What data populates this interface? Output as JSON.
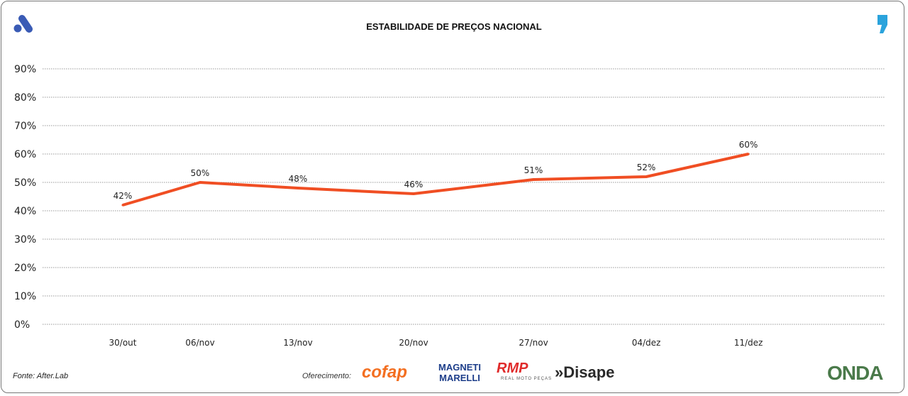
{
  "chart_data": {
    "type": "line",
    "title": "ESTABILIDADE DE PREÇOS NACIONAL",
    "categories": [
      "30/out",
      "06/nov",
      "13/nov",
      "20/nov",
      "27/nov",
      "04/dez",
      "11/dez"
    ],
    "series": [
      {
        "name": "Estabilidade de preços",
        "values": [
          42,
          50,
          48,
          46,
          51,
          52,
          60
        ],
        "labels": [
          "42%",
          "50%",
          "48%",
          "46%",
          "51%",
          "52%",
          "60%"
        ],
        "color": "#f04e23"
      }
    ],
    "yticks": [
      "0%",
      "10%",
      "20%",
      "30%",
      "40%",
      "50%",
      "60%",
      "70%",
      "80%",
      "90%"
    ],
    "ylim": [
      0,
      90
    ],
    "grid": true,
    "xlabel": "",
    "ylabel": ""
  },
  "footer": {
    "source": "Fonte: After.Lab",
    "sponsor_label": "Oferecimento:",
    "sponsors": [
      "cofap",
      "MAGNETI MARELLI",
      "RMP",
      "REAL MOTO PEÇAS",
      "»Disape"
    ],
    "brand": "ONDA"
  }
}
